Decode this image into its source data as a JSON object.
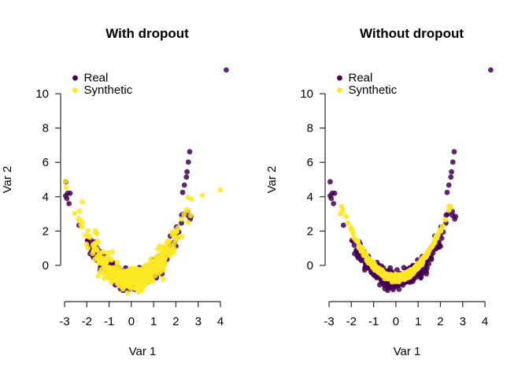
{
  "figure": {
    "background": "#ffffff",
    "description": "Two side-by-side scatter plots comparing real vs synthetic data, with and without dropout"
  },
  "palette": {
    "real": "#440154",
    "synthetic": "#FDE725",
    "axis_line": "#2b2b2b",
    "text": "#000000"
  },
  "chart_data": [
    {
      "type": "scatter",
      "title": "With dropout",
      "xlabel": "Var 1",
      "ylabel": "Var 2",
      "xlim": [
        -3,
        4.4
      ],
      "ylim": [
        -1.7,
        11.6
      ],
      "x_ticks": [
        -3,
        -2,
        -1,
        0,
        1,
        2,
        3,
        4
      ],
      "y_ticks": [
        0,
        2,
        4,
        6,
        8,
        10
      ],
      "grid": false,
      "legend": {
        "position": "top-left",
        "entries": [
          {
            "label": "Real",
            "color": "#440154"
          },
          {
            "label": "Synthetic",
            "color": "#FDE725"
          }
        ]
      },
      "series": [
        {
          "name": "Real",
          "color": "#440154",
          "opacity": 0.85,
          "seed": 7,
          "cloud": {
            "n": 400,
            "x_sd": 1.05,
            "x_min": -2.95,
            "x_max": 2.68,
            "curve_a": 0.6,
            "curve_c": -0.85,
            "noise_sd": 0.22,
            "noise_slope": 0.3
          },
          "points": [
            [
              4.26,
              11.38
            ],
            [
              2.62,
              6.62
            ],
            [
              2.56,
              6.02
            ],
            [
              2.5,
              5.45
            ],
            [
              2.47,
              5.14
            ],
            [
              2.38,
              4.68
            ],
            [
              2.3,
              4.25
            ],
            [
              -2.95,
              4.05
            ],
            [
              -2.9,
              3.9
            ],
            [
              -2.86,
              4.2
            ],
            [
              -2.8,
              3.6
            ]
          ]
        },
        {
          "name": "Synthetic",
          "color": "#FDE725",
          "opacity": 0.85,
          "seed": 13,
          "cloud": {
            "n": 500,
            "x_sd": 1.0,
            "x_min": -2.55,
            "x_max": 2.55,
            "curve_a": 0.6,
            "curve_c": -0.8,
            "noise_sd": 0.26,
            "noise_slope": 0.35
          },
          "points": [
            [
              -2.97,
              4.9
            ],
            [
              -2.93,
              4.55
            ],
            [
              3.99,
              4.4
            ],
            [
              3.18,
              4.08
            ],
            [
              2.7,
              3.85
            ],
            [
              2.66,
              2.9
            ],
            [
              -2.2,
              3.7
            ],
            [
              -1.62,
              2.0
            ],
            [
              -1.55,
              1.85
            ]
          ]
        }
      ]
    },
    {
      "type": "scatter",
      "title": "Without dropout",
      "xlabel": "Var 1",
      "ylabel": "Var 2",
      "xlim": [
        -3,
        4.4
      ],
      "ylim": [
        -1.7,
        11.6
      ],
      "x_ticks": [
        -3,
        -2,
        -1,
        0,
        1,
        2,
        3,
        4
      ],
      "y_ticks": [
        0,
        2,
        4,
        6,
        8,
        10
      ],
      "grid": false,
      "legend": {
        "position": "top-left",
        "entries": [
          {
            "label": "Real",
            "color": "#440154"
          },
          {
            "label": "Synthetic",
            "color": "#FDE725"
          }
        ]
      },
      "series": [
        {
          "name": "Real",
          "color": "#440154",
          "opacity": 0.85,
          "seed": 7,
          "cloud": {
            "n": 400,
            "x_sd": 1.05,
            "x_min": -2.95,
            "x_max": 2.68,
            "curve_a": 0.6,
            "curve_c": -0.85,
            "noise_sd": 0.22,
            "noise_slope": 0.3
          },
          "points": [
            [
              4.26,
              11.38
            ],
            [
              2.62,
              6.62
            ],
            [
              2.56,
              6.02
            ],
            [
              2.5,
              5.45
            ],
            [
              2.47,
              5.14
            ],
            [
              2.38,
              4.68
            ],
            [
              2.3,
              4.25
            ],
            [
              -2.95,
              4.05
            ],
            [
              -2.9,
              3.9
            ],
            [
              -2.86,
              4.2
            ],
            [
              -2.8,
              3.6
            ]
          ]
        },
        {
          "name": "Synthetic",
          "color": "#FDE725",
          "opacity": 0.9,
          "seed": 21,
          "cloud": {
            "n": 550,
            "x_sd": 0.92,
            "x_min": -2.44,
            "x_max": 2.44,
            "curve_a": 0.7,
            "curve_c": -0.72,
            "noise_sd": 0.08,
            "noise_slope": 0
          },
          "points": [
            [
              -2.5,
              3.02
            ],
            [
              -2.42,
              3.08
            ]
          ]
        }
      ]
    }
  ]
}
